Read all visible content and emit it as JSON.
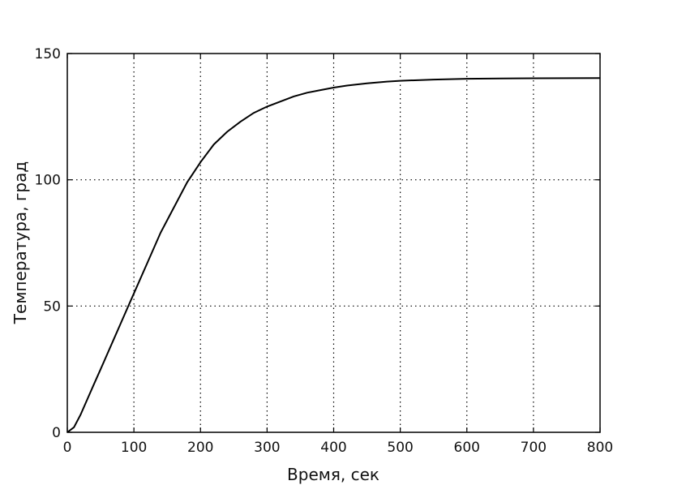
{
  "chart_data": {
    "type": "line",
    "title": "",
    "xlabel": "Время, сек",
    "ylabel": "Температура, град",
    "xlim": [
      0,
      800
    ],
    "ylim": [
      0,
      150
    ],
    "xticks": [
      0,
      100,
      200,
      300,
      400,
      500,
      600,
      700,
      800
    ],
    "yticks": [
      0,
      50,
      100,
      150
    ],
    "grid": true,
    "series": [
      {
        "x": [
          0,
          10,
          20,
          30,
          40,
          50,
          60,
          70,
          80,
          90,
          100,
          120,
          140,
          160,
          180,
          200,
          220,
          240,
          260,
          280,
          300,
          320,
          340,
          360,
          380,
          400,
          420,
          450,
          480,
          500,
          550,
          600,
          650,
          700,
          800
        ],
        "y": [
          0,
          2,
          7,
          13,
          19,
          25,
          31,
          37,
          43,
          49,
          55,
          67,
          79,
          89,
          99,
          107,
          114,
          119,
          123,
          126.5,
          129,
          131,
          133,
          134.5,
          135.5,
          136.5,
          137.3,
          138.2,
          138.9,
          139.2,
          139.7,
          140,
          140.1,
          140.2,
          140.3
        ]
      }
    ]
  }
}
